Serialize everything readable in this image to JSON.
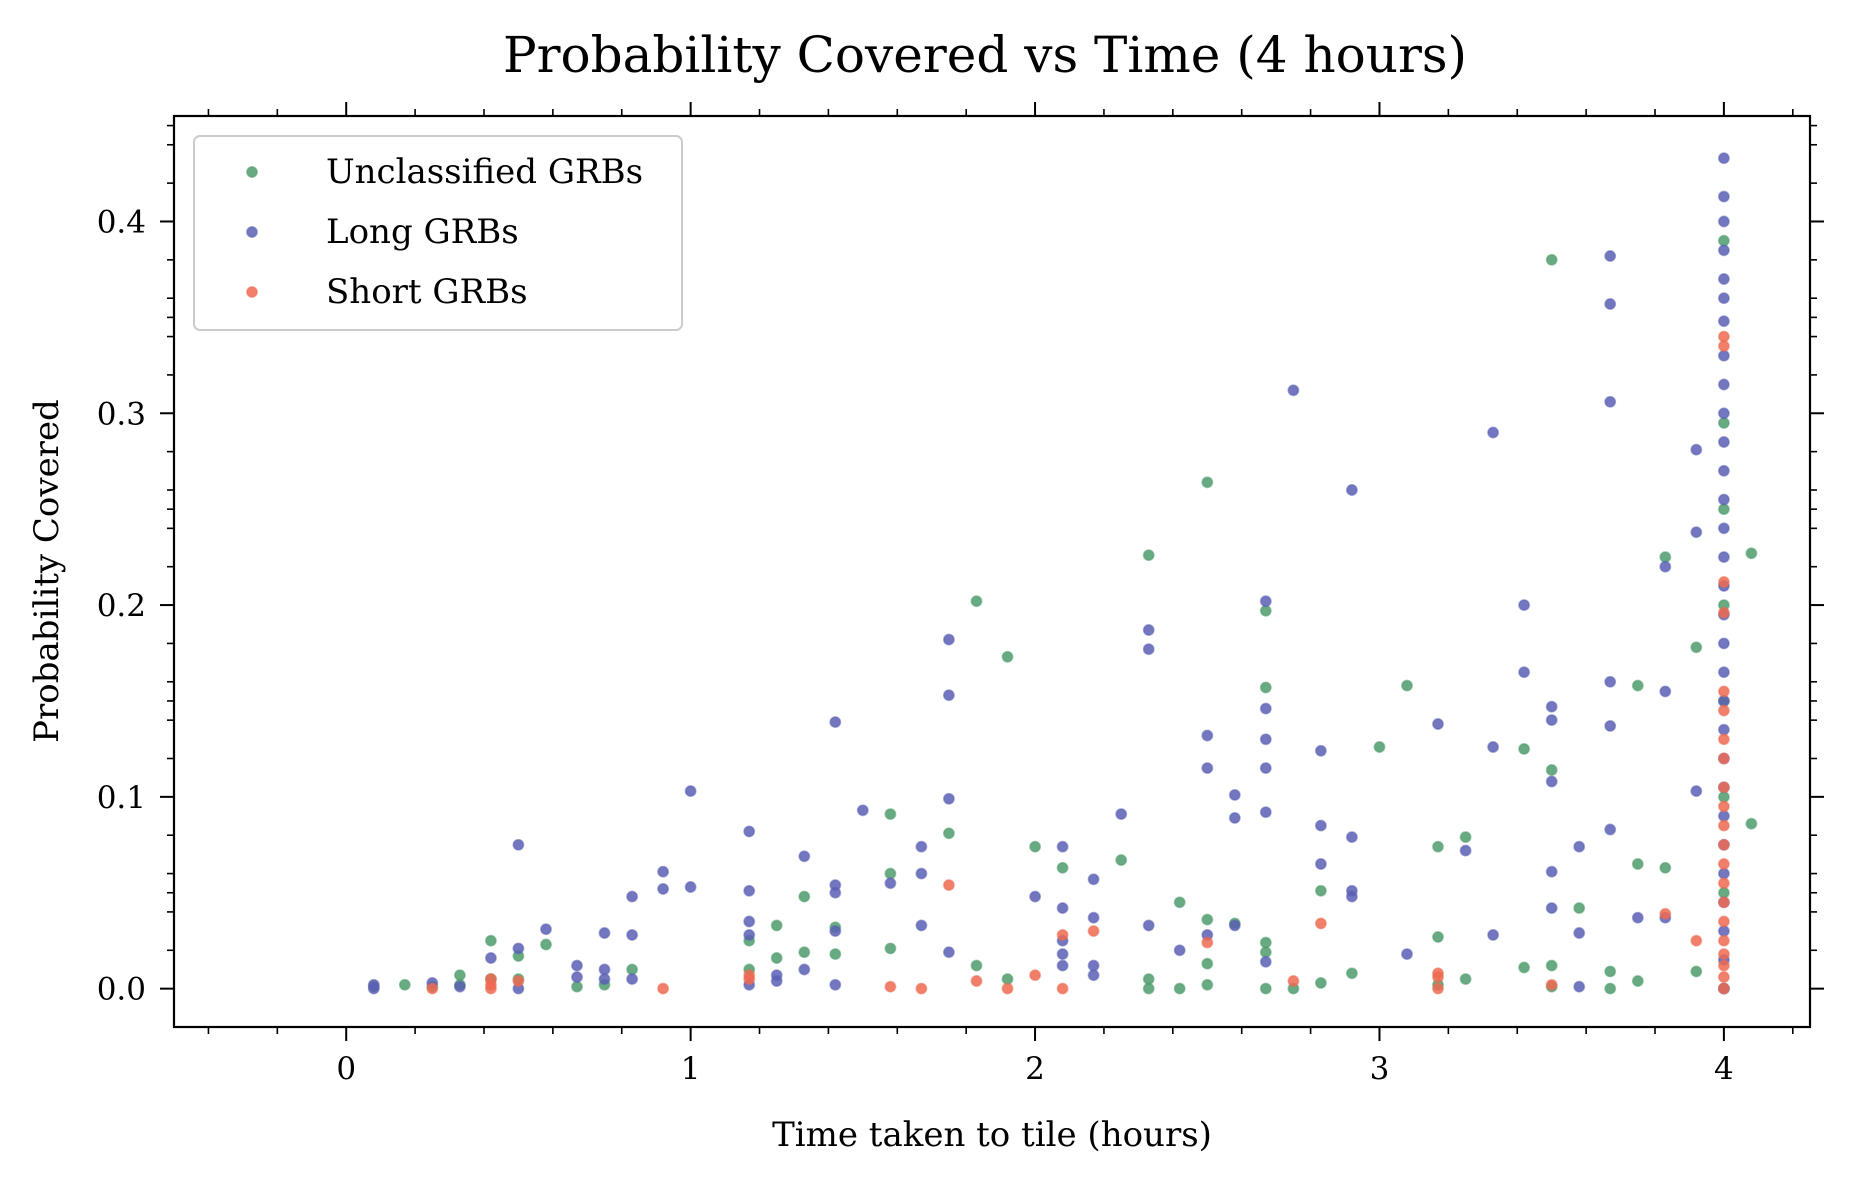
{
  "chart_data": {
    "type": "scatter",
    "title": "Probability Covered vs Time (4 hours)",
    "xlabel": "Time taken to tile (hours)",
    "ylabel": "Probability Covered",
    "xlim": [
      -0.5,
      4.25
    ],
    "ylim": [
      -0.02,
      0.455
    ],
    "x_ticks": [
      0,
      1,
      2,
      3,
      4
    ],
    "y_ticks": [
      0.0,
      0.1,
      0.2,
      0.3,
      0.4
    ],
    "x_tick_labels": [
      "0",
      "1",
      "2",
      "3",
      "4"
    ],
    "y_tick_labels": [
      "0.0",
      "0.1",
      "0.2",
      "0.3",
      "0.4"
    ],
    "legend_position": "top-left",
    "grid": false,
    "series": [
      {
        "name": "Unclassified GRBs",
        "color": "#4e9b6c",
        "points": [
          [
            0.08,
            0.001
          ],
          [
            0.17,
            0.002
          ],
          [
            0.25,
            0.001
          ],
          [
            0.33,
            0.007
          ],
          [
            0.33,
            0.002
          ],
          [
            0.42,
            0.025
          ],
          [
            0.42,
            0.005
          ],
          [
            0.5,
            0.017
          ],
          [
            0.5,
            0.005
          ],
          [
            0.58,
            0.023
          ],
          [
            0.67,
            0.001
          ],
          [
            0.75,
            0.002
          ],
          [
            0.83,
            0.01
          ],
          [
            1.17,
            0.025
          ],
          [
            1.17,
            0.01
          ],
          [
            1.25,
            0.033
          ],
          [
            1.25,
            0.016
          ],
          [
            1.33,
            0.048
          ],
          [
            1.33,
            0.019
          ],
          [
            1.42,
            0.032
          ],
          [
            1.42,
            0.018
          ],
          [
            1.58,
            0.091
          ],
          [
            1.58,
            0.06
          ],
          [
            1.58,
            0.021
          ],
          [
            1.75,
            0.081
          ],
          [
            1.83,
            0.202
          ],
          [
            1.83,
            0.012
          ],
          [
            1.92,
            0.173
          ],
          [
            1.92,
            0.005
          ],
          [
            2.0,
            0.074
          ],
          [
            2.08,
            0.063
          ],
          [
            2.25,
            0.067
          ],
          [
            2.33,
            0.226
          ],
          [
            2.33,
            0.005
          ],
          [
            2.33,
            0.0
          ],
          [
            2.42,
            0.045
          ],
          [
            2.42,
            0.0
          ],
          [
            2.5,
            0.264
          ],
          [
            2.5,
            0.036
          ],
          [
            2.5,
            0.013
          ],
          [
            2.5,
            0.002
          ],
          [
            2.58,
            0.034
          ],
          [
            2.67,
            0.197
          ],
          [
            2.67,
            0.157
          ],
          [
            2.67,
            0.024
          ],
          [
            2.67,
            0.019
          ],
          [
            2.67,
            0.0
          ],
          [
            2.75,
            0.0
          ],
          [
            2.83,
            0.051
          ],
          [
            2.83,
            0.003
          ],
          [
            2.92,
            0.008
          ],
          [
            3.0,
            0.126
          ],
          [
            3.08,
            0.158
          ],
          [
            3.17,
            0.074
          ],
          [
            3.17,
            0.027
          ],
          [
            3.17,
            0.002
          ],
          [
            3.25,
            0.079
          ],
          [
            3.25,
            0.005
          ],
          [
            3.42,
            0.125
          ],
          [
            3.42,
            0.011
          ],
          [
            3.5,
            0.38
          ],
          [
            3.5,
            0.114
          ],
          [
            3.5,
            0.012
          ],
          [
            3.5,
            0.001
          ],
          [
            3.58,
            0.042
          ],
          [
            3.67,
            0.009
          ],
          [
            3.67,
            0.0
          ],
          [
            3.75,
            0.158
          ],
          [
            3.75,
            0.065
          ],
          [
            3.75,
            0.004
          ],
          [
            3.83,
            0.225
          ],
          [
            3.83,
            0.063
          ],
          [
            3.92,
            0.178
          ],
          [
            3.92,
            0.009
          ],
          [
            4.0,
            0.39
          ],
          [
            4.0,
            0.295
          ],
          [
            4.0,
            0.25
          ],
          [
            4.0,
            0.2
          ],
          [
            4.0,
            0.15
          ],
          [
            4.0,
            0.1
          ],
          [
            4.0,
            0.05
          ],
          [
            4.0,
            0.0
          ],
          [
            4.08,
            0.227
          ],
          [
            4.08,
            0.086
          ]
        ]
      },
      {
        "name": "Long GRBs",
        "color": "#5a5fb4",
        "points": [
          [
            0.08,
            0.002
          ],
          [
            0.08,
            0.0
          ],
          [
            0.25,
            0.003
          ],
          [
            0.33,
            0.001
          ],
          [
            0.42,
            0.016
          ],
          [
            0.5,
            0.075
          ],
          [
            0.5,
            0.021
          ],
          [
            0.5,
            0.0
          ],
          [
            0.58,
            0.031
          ],
          [
            0.67,
            0.012
          ],
          [
            0.67,
            0.006
          ],
          [
            0.75,
            0.029
          ],
          [
            0.75,
            0.01
          ],
          [
            0.75,
            0.005
          ],
          [
            0.83,
            0.048
          ],
          [
            0.83,
            0.028
          ],
          [
            0.83,
            0.005
          ],
          [
            0.92,
            0.061
          ],
          [
            0.92,
            0.052
          ],
          [
            1.0,
            0.103
          ],
          [
            1.0,
            0.053
          ],
          [
            1.17,
            0.082
          ],
          [
            1.17,
            0.051
          ],
          [
            1.17,
            0.035
          ],
          [
            1.17,
            0.028
          ],
          [
            1.17,
            0.002
          ],
          [
            1.25,
            0.007
          ],
          [
            1.25,
            0.004
          ],
          [
            1.33,
            0.069
          ],
          [
            1.33,
            0.01
          ],
          [
            1.42,
            0.139
          ],
          [
            1.42,
            0.054
          ],
          [
            1.42,
            0.05
          ],
          [
            1.42,
            0.03
          ],
          [
            1.42,
            0.002
          ],
          [
            1.5,
            0.093
          ],
          [
            1.58,
            0.055
          ],
          [
            1.67,
            0.074
          ],
          [
            1.67,
            0.06
          ],
          [
            1.67,
            0.033
          ],
          [
            1.75,
            0.182
          ],
          [
            1.75,
            0.153
          ],
          [
            1.75,
            0.099
          ],
          [
            1.75,
            0.019
          ],
          [
            2.0,
            0.048
          ],
          [
            2.08,
            0.074
          ],
          [
            2.08,
            0.042
          ],
          [
            2.08,
            0.025
          ],
          [
            2.08,
            0.018
          ],
          [
            2.08,
            0.012
          ],
          [
            2.17,
            0.057
          ],
          [
            2.17,
            0.037
          ],
          [
            2.17,
            0.012
          ],
          [
            2.17,
            0.007
          ],
          [
            2.25,
            0.091
          ],
          [
            2.33,
            0.187
          ],
          [
            2.33,
            0.177
          ],
          [
            2.33,
            0.033
          ],
          [
            2.42,
            0.02
          ],
          [
            2.5,
            0.132
          ],
          [
            2.5,
            0.115
          ],
          [
            2.5,
            0.028
          ],
          [
            2.58,
            0.101
          ],
          [
            2.58,
            0.089
          ],
          [
            2.58,
            0.033
          ],
          [
            2.67,
            0.202
          ],
          [
            2.67,
            0.146
          ],
          [
            2.67,
            0.13
          ],
          [
            2.67,
            0.115
          ],
          [
            2.67,
            0.092
          ],
          [
            2.67,
            0.014
          ],
          [
            2.75,
            0.312
          ],
          [
            2.83,
            0.124
          ],
          [
            2.83,
            0.085
          ],
          [
            2.83,
            0.065
          ],
          [
            2.92,
            0.26
          ],
          [
            2.92,
            0.079
          ],
          [
            2.92,
            0.051
          ],
          [
            2.92,
            0.048
          ],
          [
            3.08,
            0.018
          ],
          [
            3.17,
            0.138
          ],
          [
            3.25,
            0.072
          ],
          [
            3.33,
            0.29
          ],
          [
            3.33,
            0.126
          ],
          [
            3.33,
            0.028
          ],
          [
            3.42,
            0.2
          ],
          [
            3.42,
            0.165
          ],
          [
            3.5,
            0.147
          ],
          [
            3.5,
            0.14
          ],
          [
            3.5,
            0.108
          ],
          [
            3.5,
            0.061
          ],
          [
            3.5,
            0.042
          ],
          [
            3.58,
            0.074
          ],
          [
            3.58,
            0.029
          ],
          [
            3.58,
            0.001
          ],
          [
            3.67,
            0.382
          ],
          [
            3.67,
            0.357
          ],
          [
            3.67,
            0.306
          ],
          [
            3.67,
            0.16
          ],
          [
            3.67,
            0.137
          ],
          [
            3.67,
            0.083
          ],
          [
            3.75,
            0.037
          ],
          [
            3.83,
            0.22
          ],
          [
            3.83,
            0.155
          ],
          [
            3.83,
            0.037
          ],
          [
            3.92,
            0.281
          ],
          [
            3.92,
            0.238
          ],
          [
            3.92,
            0.103
          ],
          [
            4.0,
            0.433
          ],
          [
            4.0,
            0.413
          ],
          [
            4.0,
            0.4
          ],
          [
            4.0,
            0.385
          ],
          [
            4.0,
            0.37
          ],
          [
            4.0,
            0.36
          ],
          [
            4.0,
            0.348
          ],
          [
            4.0,
            0.33
          ],
          [
            4.0,
            0.315
          ],
          [
            4.0,
            0.3
          ],
          [
            4.0,
            0.285
          ],
          [
            4.0,
            0.27
          ],
          [
            4.0,
            0.255
          ],
          [
            4.0,
            0.24
          ],
          [
            4.0,
            0.225
          ],
          [
            4.0,
            0.21
          ],
          [
            4.0,
            0.195
          ],
          [
            4.0,
            0.18
          ],
          [
            4.0,
            0.165
          ],
          [
            4.0,
            0.15
          ],
          [
            4.0,
            0.135
          ],
          [
            4.0,
            0.12
          ],
          [
            4.0,
            0.105
          ],
          [
            4.0,
            0.09
          ],
          [
            4.0,
            0.075
          ],
          [
            4.0,
            0.06
          ],
          [
            4.0,
            0.045
          ],
          [
            4.0,
            0.03
          ],
          [
            4.0,
            0.015
          ],
          [
            4.0,
            0.0
          ]
        ]
      },
      {
        "name": "Short GRBs",
        "color": "#ee6a50",
        "points": [
          [
            0.25,
            0.0
          ],
          [
            0.42,
            0.005
          ],
          [
            0.42,
            0.002
          ],
          [
            0.42,
            0.0
          ],
          [
            0.5,
            0.004
          ],
          [
            0.92,
            0.0
          ],
          [
            1.17,
            0.007
          ],
          [
            1.17,
            0.005
          ],
          [
            1.58,
            0.001
          ],
          [
            1.67,
            0.0
          ],
          [
            1.75,
            0.054
          ],
          [
            1.83,
            0.004
          ],
          [
            1.92,
            0.0
          ],
          [
            2.0,
            0.007
          ],
          [
            2.08,
            0.028
          ],
          [
            2.08,
            0.0
          ],
          [
            2.17,
            0.03
          ],
          [
            2.5,
            0.024
          ],
          [
            2.75,
            0.004
          ],
          [
            2.83,
            0.034
          ],
          [
            3.17,
            0.008
          ],
          [
            3.17,
            0.006
          ],
          [
            3.17,
            0.0
          ],
          [
            3.5,
            0.002
          ],
          [
            3.83,
            0.039
          ],
          [
            3.92,
            0.025
          ],
          [
            4.0,
            0.34
          ],
          [
            4.0,
            0.335
          ],
          [
            4.0,
            0.212
          ],
          [
            4.0,
            0.196
          ],
          [
            4.0,
            0.155
          ],
          [
            4.0,
            0.145
          ],
          [
            4.0,
            0.13
          ],
          [
            4.0,
            0.12
          ],
          [
            4.0,
            0.105
          ],
          [
            4.0,
            0.095
          ],
          [
            4.0,
            0.085
          ],
          [
            4.0,
            0.075
          ],
          [
            4.0,
            0.065
          ],
          [
            4.0,
            0.055
          ],
          [
            4.0,
            0.045
          ],
          [
            4.0,
            0.035
          ],
          [
            4.0,
            0.025
          ],
          [
            4.0,
            0.018
          ],
          [
            4.0,
            0.012
          ],
          [
            4.0,
            0.006
          ],
          [
            4.0,
            0.0
          ]
        ]
      }
    ]
  }
}
